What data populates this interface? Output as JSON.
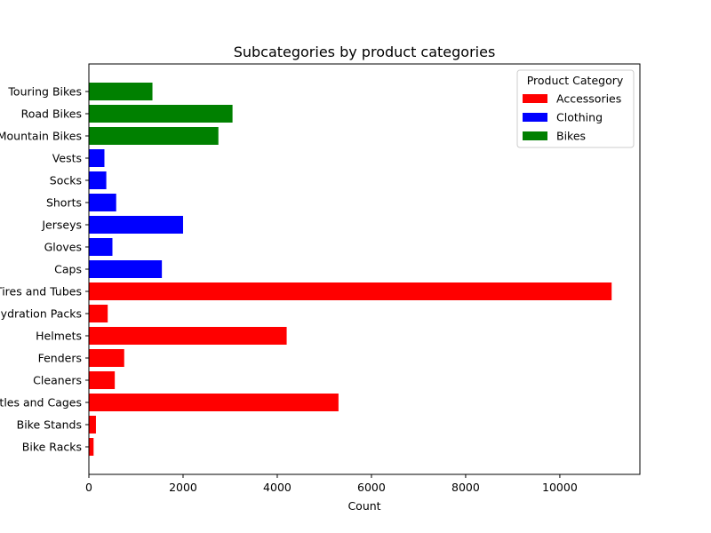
{
  "chart_data": {
    "type": "bar",
    "orientation": "horizontal",
    "title": "Subcategories by product categories",
    "xlabel": "Count",
    "ylabel": "",
    "xlim": [
      0,
      11700
    ],
    "xticks": [
      0,
      2000,
      4000,
      6000,
      8000,
      10000
    ],
    "grid": false,
    "legend": {
      "title": "Product Category",
      "placement": "top-right",
      "entries": [
        {
          "name": "Accessories",
          "color": "#ff0000"
        },
        {
          "name": "Clothing",
          "color": "#0000ff"
        },
        {
          "name": "Bikes",
          "color": "#008000"
        }
      ]
    },
    "categories": [
      "Bike Racks",
      "Bike Stands",
      "Bottles and Cages",
      "Cleaners",
      "Fenders",
      "Helmets",
      "Hydration Packs",
      "Tires and Tubes",
      "Caps",
      "Gloves",
      "Jerseys",
      "Shorts",
      "Socks",
      "Vests",
      "Mountain Bikes",
      "Road Bikes",
      "Touring Bikes"
    ],
    "values": [
      100,
      150,
      5300,
      550,
      750,
      4200,
      400,
      11100,
      1550,
      500,
      2000,
      580,
      370,
      330,
      2750,
      3050,
      1350
    ],
    "groups": [
      "Accessories",
      "Accessories",
      "Accessories",
      "Accessories",
      "Accessories",
      "Accessories",
      "Accessories",
      "Accessories",
      "Clothing",
      "Clothing",
      "Clothing",
      "Clothing",
      "Clothing",
      "Clothing",
      "Bikes",
      "Bikes",
      "Bikes"
    ]
  }
}
